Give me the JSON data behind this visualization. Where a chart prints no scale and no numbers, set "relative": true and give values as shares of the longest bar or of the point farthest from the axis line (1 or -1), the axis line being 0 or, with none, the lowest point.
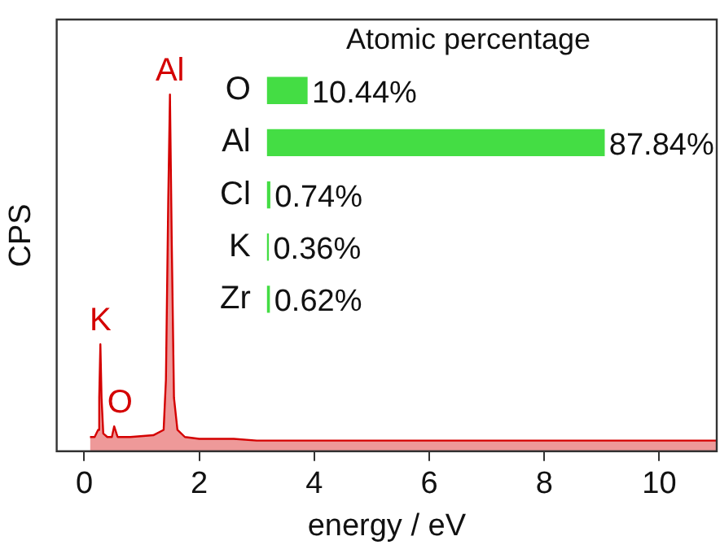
{
  "chart_data": [
    {
      "type": "area",
      "xlabel": "energy / eV",
      "ylabel": "CPS",
      "relative": true,
      "color": "#d40000",
      "marker": "none",
      "x": [
        0.1,
        0.18,
        0.24,
        0.26,
        0.28,
        0.3,
        0.33,
        0.4,
        0.48,
        0.52,
        0.58,
        0.8,
        1.2,
        1.38,
        1.42,
        1.46,
        1.49,
        1.52,
        1.56,
        1.62,
        1.75,
        2.0,
        2.6,
        3.0,
        5.0,
        7.0,
        9.0,
        11.0
      ],
      "values": [
        0.04,
        0.04,
        0.06,
        0.15,
        0.3,
        0.15,
        0.05,
        0.04,
        0.04,
        0.07,
        0.04,
        0.04,
        0.045,
        0.06,
        0.2,
        0.7,
        1.0,
        0.6,
        0.15,
        0.06,
        0.04,
        0.035,
        0.035,
        0.03,
        0.03,
        0.03,
        0.03,
        0.03
      ],
      "xlim": [
        -0.48,
        11
      ],
      "xticks": [
        0,
        2,
        4,
        6,
        8,
        10
      ],
      "annotations": [
        {
          "text": "Al",
          "x": 1.49,
          "y": 1.0
        },
        {
          "text": "K",
          "x": 0.28,
          "y": 0.3
        },
        {
          "text": "O",
          "x": 0.62,
          "y": 0.07
        }
      ]
    },
    {
      "type": "bar",
      "orientation": "horizontal",
      "title": "Atomic percentage",
      "categories": [
        "O",
        "Al",
        "Cl",
        "K",
        "Zr"
      ],
      "values": [
        10.44,
        87.84,
        0.74,
        0.36,
        0.62
      ],
      "color": "#44dd44",
      "value_labels": [
        "10.44%",
        "87.84%",
        "0.74%",
        "0.36%",
        "0.62%"
      ],
      "xlim": [
        0,
        118
      ],
      "tick_labels": "y"
    }
  ]
}
